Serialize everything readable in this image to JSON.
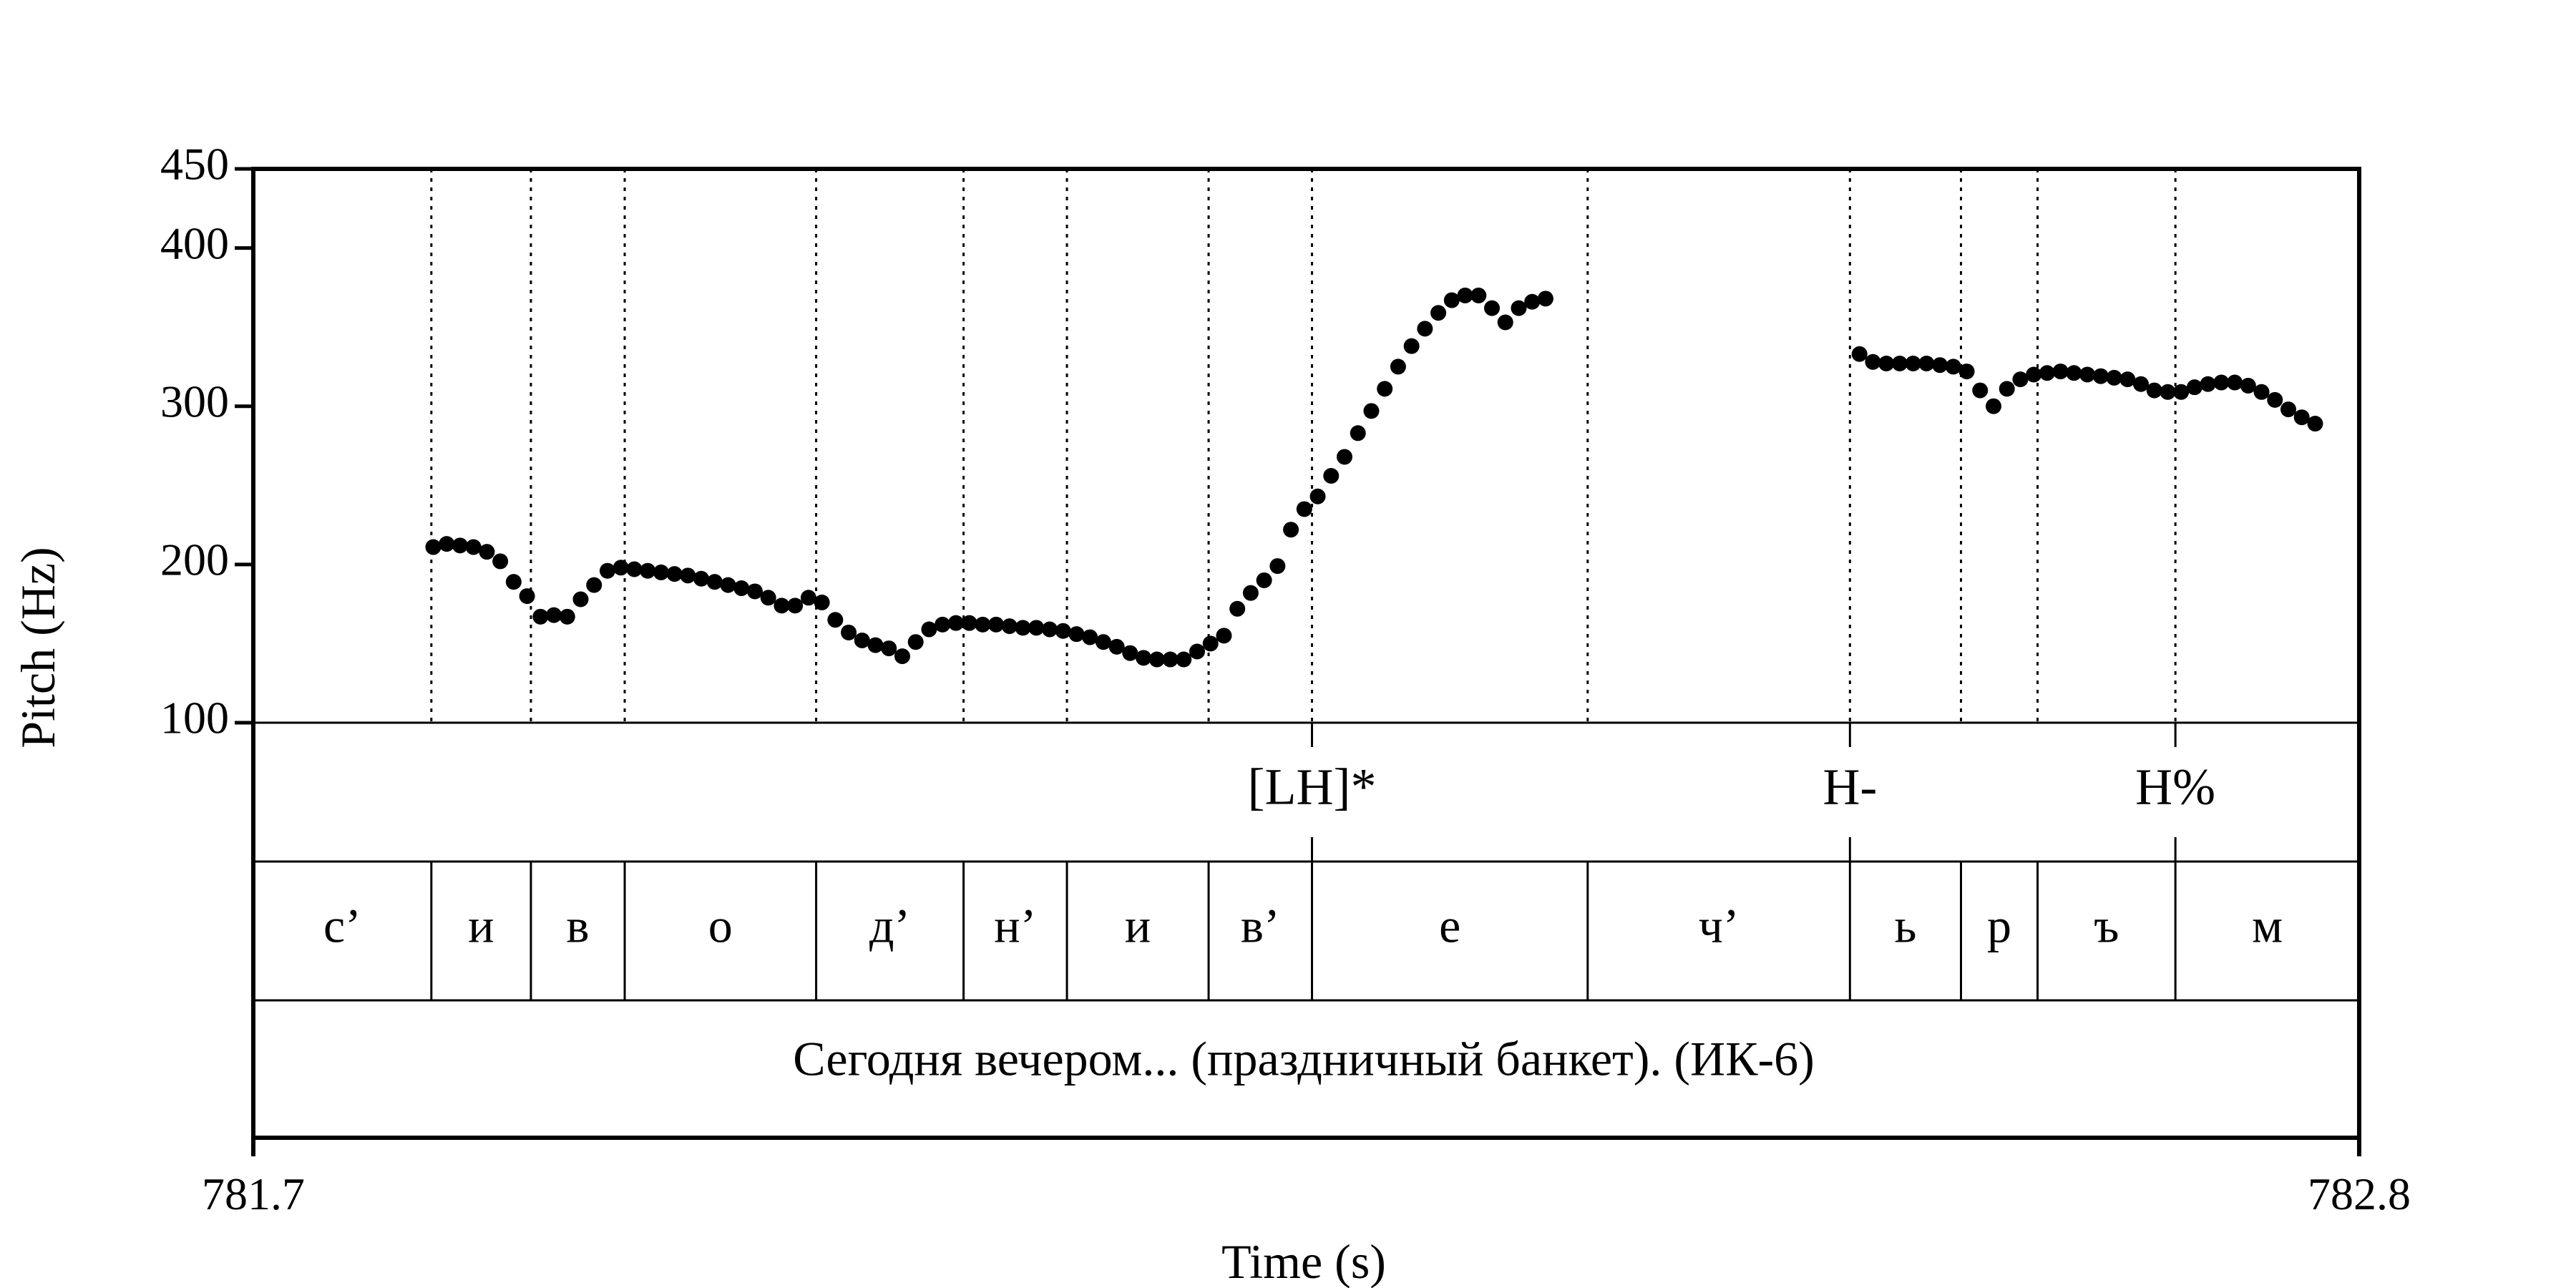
{
  "chart_data": {
    "type": "scatter",
    "xlabel": "Time (s)",
    "ylabel": "Pitch (Hz)",
    "xlim": [
      781.7,
      782.8
    ],
    "ylim": [
      100,
      450
    ],
    "x_ticks": [
      "781.7",
      "782.8"
    ],
    "y_ticks": [
      {
        "label": "100",
        "value": 100
      },
      {
        "label": "200",
        "value": 200
      },
      {
        "label": "300",
        "value": 300
      },
      {
        "label": "400",
        "value": 400
      },
      {
        "label": "450",
        "value": 450
      }
    ],
    "pitch_points": [
      [
        781.794,
        211
      ],
      [
        781.801,
        213
      ],
      [
        781.808,
        212
      ],
      [
        781.815,
        211
      ],
      [
        781.822,
        208
      ],
      [
        781.829,
        202
      ],
      [
        781.836,
        189
      ],
      [
        781.843,
        180
      ],
      [
        781.85,
        167
      ],
      [
        781.857,
        168
      ],
      [
        781.864,
        167
      ],
      [
        781.871,
        178
      ],
      [
        781.878,
        187
      ],
      [
        781.885,
        196
      ],
      [
        781.892,
        198
      ],
      [
        781.899,
        197
      ],
      [
        781.906,
        196
      ],
      [
        781.913,
        195
      ],
      [
        781.92,
        194
      ],
      [
        781.927,
        193
      ],
      [
        781.934,
        191
      ],
      [
        781.941,
        189
      ],
      [
        781.948,
        187
      ],
      [
        781.955,
        185
      ],
      [
        781.962,
        183
      ],
      [
        781.969,
        179
      ],
      [
        781.976,
        174
      ],
      [
        781.983,
        174
      ],
      [
        781.99,
        179
      ],
      [
        781.997,
        176
      ],
      [
        782.004,
        165
      ],
      [
        782.011,
        157
      ],
      [
        782.018,
        152
      ],
      [
        782.025,
        149
      ],
      [
        782.032,
        147
      ],
      [
        782.039,
        142
      ],
      [
        782.046,
        151
      ],
      [
        782.053,
        159
      ],
      [
        782.06,
        162
      ],
      [
        782.067,
        163
      ],
      [
        782.074,
        163
      ],
      [
        782.081,
        162
      ],
      [
        782.088,
        162
      ],
      [
        782.095,
        161
      ],
      [
        782.102,
        160
      ],
      [
        782.109,
        160
      ],
      [
        782.116,
        159
      ],
      [
        782.123,
        158
      ],
      [
        782.13,
        156
      ],
      [
        782.137,
        154
      ],
      [
        782.144,
        151
      ],
      [
        782.151,
        148
      ],
      [
        782.158,
        144
      ],
      [
        782.165,
        141
      ],
      [
        782.172,
        140
      ],
      [
        782.179,
        140
      ],
      [
        782.186,
        140
      ],
      [
        782.193,
        145
      ],
      [
        782.2,
        150
      ],
      [
        782.207,
        155
      ],
      [
        782.214,
        172
      ],
      [
        782.221,
        182
      ],
      [
        782.228,
        190
      ],
      [
        782.235,
        199
      ],
      [
        782.242,
        222
      ],
      [
        782.249,
        235
      ],
      [
        782.256,
        243
      ],
      [
        782.263,
        256
      ],
      [
        782.27,
        268
      ],
      [
        782.277,
        283
      ],
      [
        782.284,
        297
      ],
      [
        782.291,
        311
      ],
      [
        782.298,
        325
      ],
      [
        782.305,
        338
      ],
      [
        782.312,
        349
      ],
      [
        782.319,
        359
      ],
      [
        782.326,
        367
      ],
      [
        782.333,
        370
      ],
      [
        782.34,
        370
      ],
      [
        782.347,
        362
      ],
      [
        782.354,
        353
      ],
      [
        782.361,
        362
      ],
      [
        782.368,
        366
      ],
      [
        782.375,
        368
      ],
      [
        782.539,
        333
      ],
      [
        782.546,
        328
      ],
      [
        782.553,
        327
      ],
      [
        782.56,
        327
      ],
      [
        782.567,
        327
      ],
      [
        782.574,
        327
      ],
      [
        782.581,
        326
      ],
      [
        782.588,
        325
      ],
      [
        782.595,
        322
      ],
      [
        782.602,
        310
      ],
      [
        782.609,
        300
      ],
      [
        782.616,
        311
      ],
      [
        782.623,
        317
      ],
      [
        782.63,
        320
      ],
      [
        782.637,
        321
      ],
      [
        782.644,
        322
      ],
      [
        782.651,
        321
      ],
      [
        782.658,
        320
      ],
      [
        782.665,
        319
      ],
      [
        782.672,
        318
      ],
      [
        782.679,
        317
      ],
      [
        782.686,
        314
      ],
      [
        782.693,
        310
      ],
      [
        782.7,
        309
      ],
      [
        782.707,
        309
      ],
      [
        782.714,
        312
      ],
      [
        782.721,
        314
      ],
      [
        782.728,
        315
      ],
      [
        782.735,
        315
      ],
      [
        782.742,
        313
      ],
      [
        782.749,
        309
      ],
      [
        782.756,
        304
      ],
      [
        782.763,
        298
      ],
      [
        782.77,
        293
      ],
      [
        782.777,
        289
      ]
    ],
    "tone_tier": [
      {
        "time": 782.253,
        "label": "[LH]*"
      },
      {
        "time": 782.534,
        "label": "H-"
      },
      {
        "time": 782.704,
        "label": "H%"
      }
    ],
    "segment_boundaries": [
      781.793,
      781.845,
      781.894,
      781.994,
      782.071,
      782.125,
      782.199,
      782.253,
      782.397,
      782.534,
      782.592,
      782.632,
      782.704
    ],
    "segment_labels": [
      "с’",
      "и",
      "в",
      "о",
      "д’",
      "н’",
      "и",
      "в’",
      "е",
      "ч’",
      "ь",
      "р",
      "ъ",
      "м"
    ],
    "sentence": "Сегодня вечером... (праздничный банкет). (ИК-6)"
  }
}
